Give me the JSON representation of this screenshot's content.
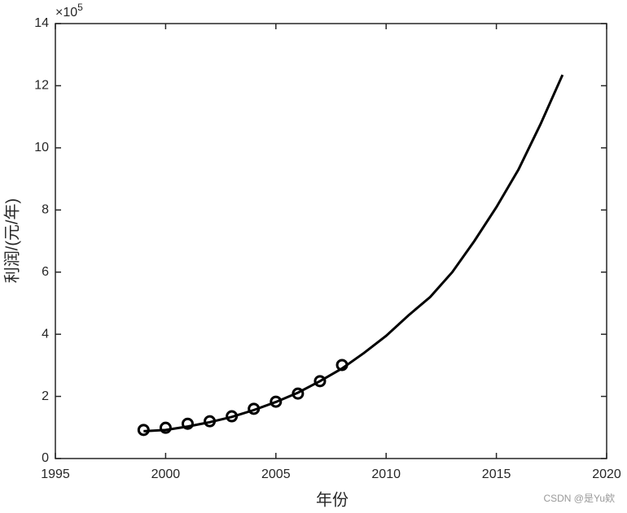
{
  "chart_data": {
    "type": "line",
    "xlabel": "年份",
    "ylabel": "利润/(元/年)",
    "y_multiplier": {
      "base": "×10",
      "exponent": "5"
    },
    "watermark": "CSDN @是Yu欸",
    "xlim": [
      1995,
      2020
    ],
    "xticks": [
      1995,
      2000,
      2005,
      2010,
      2015,
      2020
    ],
    "ylim": [
      0,
      14
    ],
    "yticks": [
      0,
      2,
      4,
      6,
      8,
      10,
      12,
      14
    ],
    "grid": false,
    "box": true,
    "series": [
      {
        "color": "#000000",
        "marker": "circle",
        "line": false,
        "x": [
          1999,
          2000,
          2001,
          2002,
          2003,
          2004,
          2005,
          2006,
          2007,
          2008
        ],
        "values": [
          0.92,
          0.99,
          1.12,
          1.2,
          1.36,
          1.6,
          1.83,
          2.09,
          2.49,
          3.01
        ]
      },
      {
        "color": "#000000",
        "marker": "none",
        "line": true,
        "x": [
          1999,
          2000,
          2001,
          2002,
          2003,
          2004,
          2005,
          2006,
          2007,
          2008,
          2009,
          2010,
          2011,
          2012,
          2013,
          2014,
          2015,
          2016,
          2017,
          2018
        ],
        "values": [
          0.88,
          0.92,
          1.03,
          1.17,
          1.34,
          1.56,
          1.82,
          2.12,
          2.49,
          2.9,
          3.4,
          3.95,
          4.6,
          5.2,
          6.0,
          7.0,
          8.09,
          9.3,
          10.76,
          12.35
        ]
      }
    ]
  }
}
